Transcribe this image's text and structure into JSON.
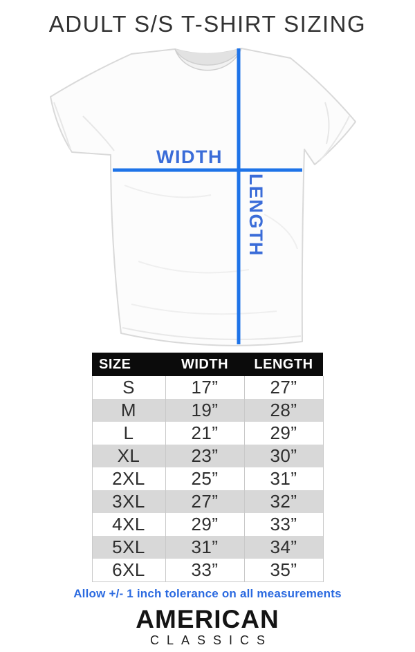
{
  "title": "ADULT S/S T-SHIRT SIZING",
  "diagram": {
    "width_label": "WIDTH",
    "length_label": "LENGTH",
    "line_color": "#1e73e8",
    "label_color": "#3a6cd8"
  },
  "table": {
    "headers": [
      "SIZE",
      "WIDTH",
      "LENGTH"
    ],
    "rows": [
      {
        "size": "S",
        "width": "17”",
        "length": "27”"
      },
      {
        "size": "M",
        "width": "19”",
        "length": "28”"
      },
      {
        "size": "L",
        "width": "21”",
        "length": "29”"
      },
      {
        "size": "XL",
        "width": "23”",
        "length": "30”"
      },
      {
        "size": "2XL",
        "width": "25”",
        "length": "31”"
      },
      {
        "size": "3XL",
        "width": "27”",
        "length": "32”"
      },
      {
        "size": "4XL",
        "width": "29”",
        "length": "33”"
      },
      {
        "size": "5XL",
        "width": "31”",
        "length": "34”"
      },
      {
        "size": "6XL",
        "width": "33”",
        "length": "35”"
      }
    ]
  },
  "note": "Allow +/- 1 inch tolerance on all measurements",
  "brand": {
    "name": "AMERICAN",
    "subname": "CLASSICS"
  },
  "colors": {
    "accent_blue": "#1e73e8",
    "label_blue": "#3a6cd8",
    "note_blue": "#2b6ae0",
    "stripe_gray": "#d8d8d8",
    "header_black": "#0b0b0b"
  },
  "chart_data": {
    "type": "table",
    "title": "ADULT S/S T-SHIRT SIZING",
    "columns": [
      "SIZE",
      "WIDTH",
      "LENGTH"
    ],
    "units": "inches",
    "rows": [
      [
        "S",
        17,
        27
      ],
      [
        "M",
        19,
        28
      ],
      [
        "L",
        21,
        29
      ],
      [
        "XL",
        23,
        30
      ],
      [
        "2XL",
        25,
        31
      ],
      [
        "3XL",
        27,
        32
      ],
      [
        "4XL",
        29,
        33
      ],
      [
        "5XL",
        31,
        34
      ],
      [
        "6XL",
        33,
        35
      ]
    ],
    "footnote": "Allow +/- 1 inch tolerance on all measurements"
  }
}
